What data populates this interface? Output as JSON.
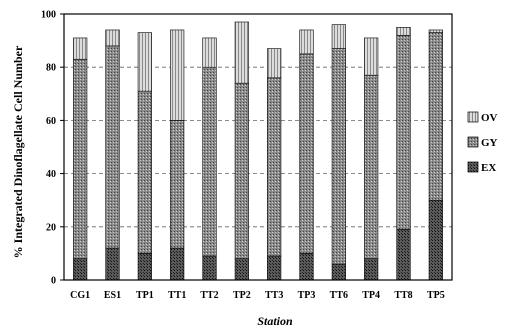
{
  "chart_data": {
    "type": "bar",
    "stacked": true,
    "title": "",
    "xlabel": "Station",
    "ylabel": "% Integrated Dinoflagellate Cell Number",
    "ylim": [
      0,
      100
    ],
    "yticks": [
      "0",
      "20",
      "40",
      "60",
      "80",
      "100"
    ],
    "grid": "horizontal dashed",
    "legend": "right",
    "categories": [
      "CG1",
      "ES1",
      "TP1",
      "TT1",
      "TT2",
      "TP2",
      "TT3",
      "TP3",
      "TT6",
      "TP4",
      "TT8",
      "TP5"
    ],
    "series": [
      {
        "name": "EX",
        "color": "#3a3a3a",
        "values": [
          8,
          12,
          10,
          12,
          9,
          8,
          9,
          10,
          6,
          8,
          19,
          30
        ]
      },
      {
        "name": "GY",
        "color": "#7a7a7a",
        "values": [
          75,
          76,
          61,
          48,
          71,
          66,
          67,
          75,
          81,
          69,
          73,
          63
        ]
      },
      {
        "name": "OV",
        "color": "#cfcfcf",
        "values": [
          8,
          6,
          22,
          34,
          11,
          23,
          11,
          9,
          9,
          14,
          3,
          1
        ]
      }
    ]
  }
}
